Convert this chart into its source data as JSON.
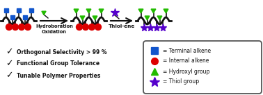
{
  "bg_color": "#ffffff",
  "chain_color": "#111111",
  "blue_color": "#1155cc",
  "red_color": "#dd0000",
  "green_color": "#22bb00",
  "purple_color": "#5500cc",
  "text_color": "#111111",
  "label_hydroboration": "Hydroboration\nOxidation",
  "label_thiolene": "Thiol-ene",
  "bullet1": "Orthogonal Selectivity > 99 %",
  "bullet2": "Functional Group Tolerance",
  "bullet3": "Tunable Polymer Properties",
  "legend_terminal": "= Terminal alkene",
  "legend_internal": "= Internal alkene",
  "legend_hydroxyl": "= Hydroxyl group",
  "legend_thiol": "= Thiol group",
  "fig_width": 3.78,
  "fig_height": 1.37,
  "dpi": 100
}
